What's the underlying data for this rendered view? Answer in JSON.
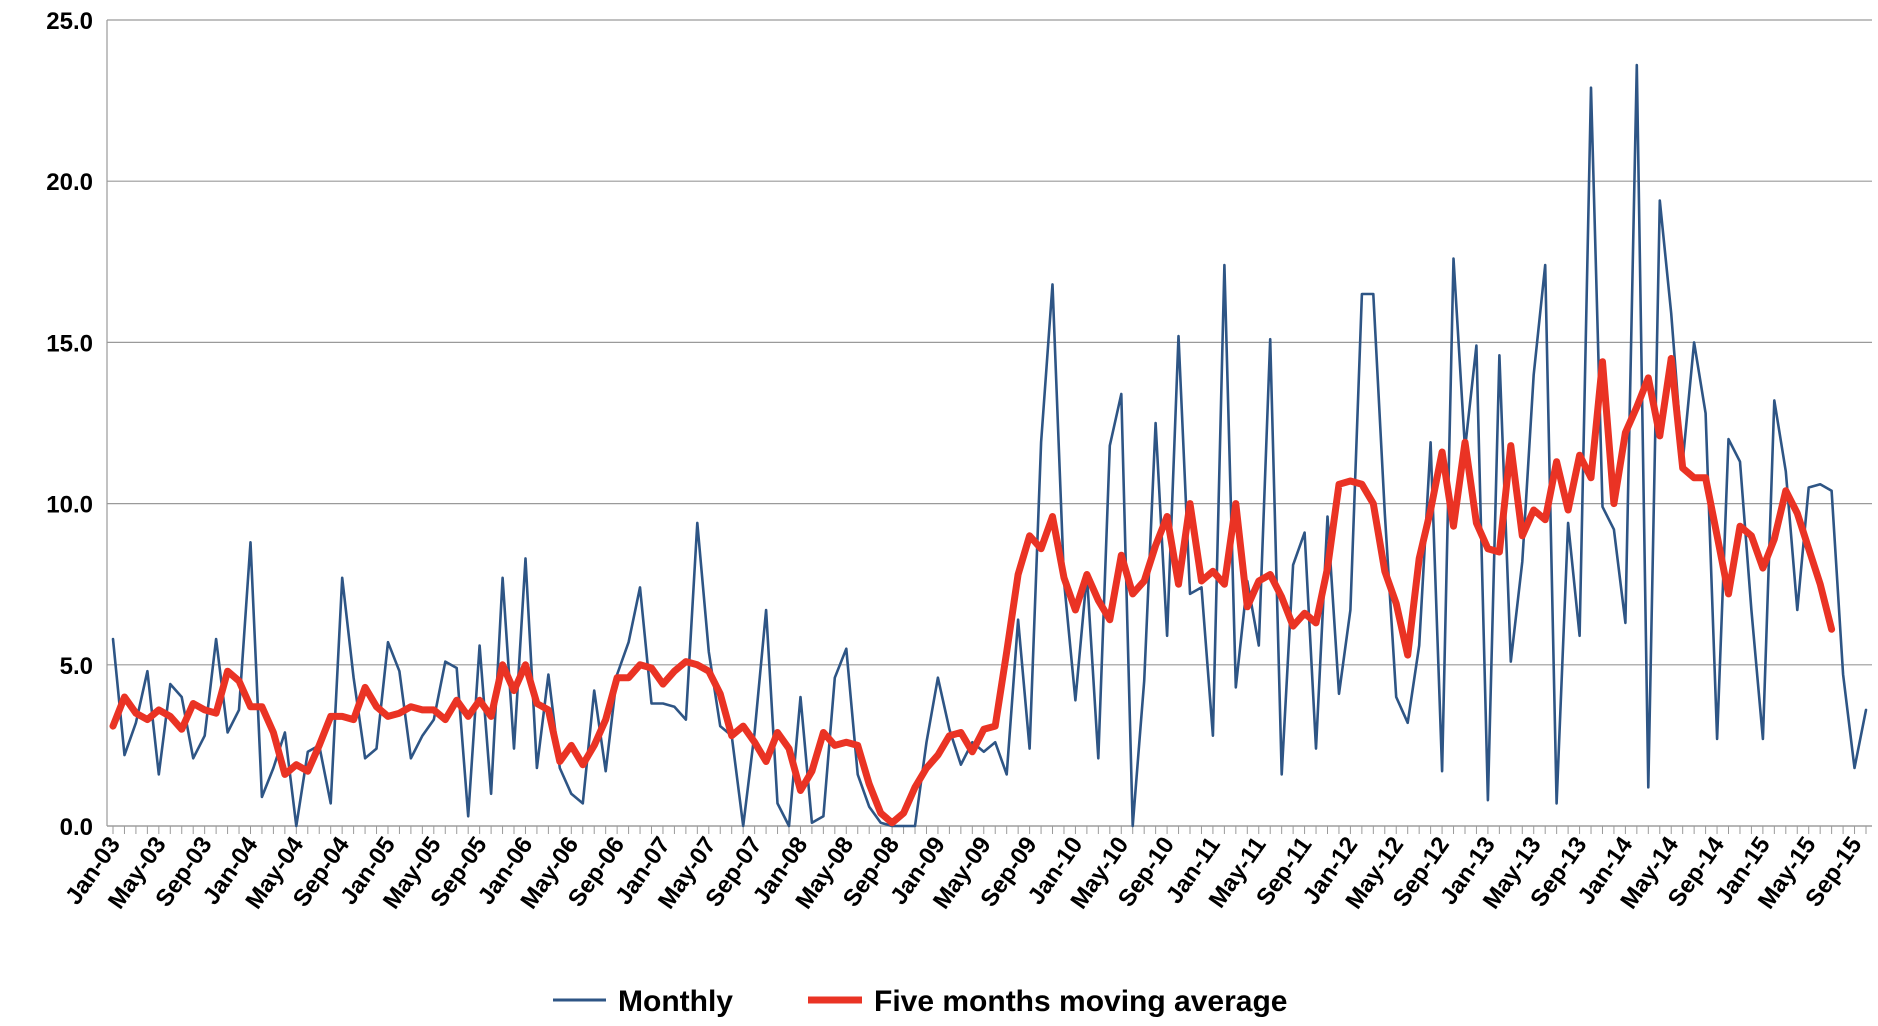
{
  "chart_data": {
    "type": "line",
    "title": "",
    "xlabel": "",
    "ylabel": "",
    "ylim": [
      0,
      25
    ],
    "yticks": [
      "0.0",
      "5.0",
      "10.0",
      "15.0",
      "20.0",
      "25.0"
    ],
    "grid": true,
    "legend_position": "bottom",
    "x_tick_labels": [
      "Jan-03",
      "May-03",
      "Sep-03",
      "Jan-04",
      "May-04",
      "Sep-04",
      "Jan-05",
      "May-05",
      "Sep-05",
      "Jan-06",
      "May-06",
      "Sep-06",
      "Jan-07",
      "May-07",
      "Sep-07",
      "Jan-08",
      "May-08",
      "Sep-08",
      "Jan-09",
      "May-09",
      "Sep-09",
      "Jan-10",
      "May-10",
      "Sep-10",
      "Jan-11",
      "May-11",
      "Sep-11",
      "Jan-12",
      "May-12",
      "Sep-12",
      "Jan-13",
      "May-13",
      "Sep-13",
      "Jan-14",
      "May-14",
      "Sep-14",
      "Jan-15",
      "May-15",
      "Sep-15"
    ],
    "x_start": "Jan-03",
    "x_end": "Sep-15",
    "series": [
      {
        "name": "Monthly",
        "color": "#2e5585",
        "values": [
          5.8,
          2.2,
          3.2,
          4.8,
          1.6,
          4.4,
          4.0,
          2.1,
          2.8,
          5.8,
          2.9,
          3.6,
          8.8,
          0.9,
          1.8,
          2.9,
          0.0,
          2.3,
          2.5,
          0.7,
          7.7,
          4.6,
          2.1,
          2.4,
          5.7,
          4.8,
          2.1,
          2.8,
          3.3,
          5.1,
          4.9,
          0.3,
          5.6,
          1.0,
          7.7,
          2.4,
          8.3,
          1.8,
          4.7,
          1.8,
          1.0,
          0.7,
          4.2,
          1.7,
          4.7,
          5.7,
          7.4,
          3.8,
          3.8,
          3.7,
          3.3,
          9.4,
          5.4,
          3.1,
          2.8,
          0.0,
          2.9,
          6.7,
          0.7,
          0.0,
          4.0,
          0.1,
          0.3,
          4.6,
          5.5,
          1.6,
          0.6,
          0.1,
          0.0,
          0.0,
          0.0,
          2.6,
          4.6,
          3.0,
          1.9,
          2.6,
          2.3,
          2.6,
          1.6,
          6.4,
          2.4,
          11.9,
          16.8,
          7.6,
          3.9,
          7.8,
          2.1,
          11.8,
          13.4,
          0.0,
          4.5,
          12.5,
          5.9,
          15.2,
          7.2,
          7.4,
          2.8,
          17.4,
          4.3,
          7.6,
          5.6,
          15.1,
          1.6,
          8.1,
          9.1,
          2.4,
          9.6,
          4.1,
          6.7,
          16.5,
          16.5,
          9.7,
          4.0,
          3.2,
          5.6,
          11.9,
          1.7,
          17.6,
          11.7,
          14.9,
          0.8,
          14.6,
          5.1,
          8.2,
          14.0,
          17.4,
          0.7,
          9.4,
          5.9,
          22.9,
          9.9,
          9.2,
          6.3,
          23.6,
          1.2,
          19.4,
          15.9,
          11.3,
          15.0,
          12.8,
          2.7,
          12.0,
          11.3,
          6.7,
          2.7,
          13.2,
          11.0,
          6.7,
          10.5,
          10.6,
          10.4,
          4.7,
          1.8,
          3.6
        ]
      },
      {
        "name": "Five months moving average",
        "color": "#ea3324",
        "values": [
          3.1,
          4.0,
          3.5,
          3.3,
          3.6,
          3.4,
          3.0,
          3.8,
          3.6,
          3.5,
          4.8,
          4.5,
          3.7,
          3.7,
          2.9,
          1.6,
          1.9,
          1.7,
          2.5,
          3.4,
          3.4,
          3.3,
          4.3,
          3.7,
          3.4,
          3.5,
          3.7,
          3.6,
          3.6,
          3.3,
          3.9,
          3.4,
          3.9,
          3.4,
          5.0,
          4.2,
          5.0,
          3.8,
          3.6,
          2.0,
          2.5,
          1.9,
          2.5,
          3.3,
          4.6,
          4.6,
          5.0,
          4.9,
          4.4,
          4.8,
          5.1,
          5.0,
          4.8,
          4.1,
          2.8,
          3.1,
          2.6,
          2.0,
          2.9,
          2.4,
          1.1,
          1.7,
          2.9,
          2.5,
          2.6,
          2.5,
          1.3,
          0.4,
          0.1,
          0.4,
          1.2,
          1.8,
          2.2,
          2.8,
          2.9,
          2.3,
          3.0,
          3.1,
          5.4,
          7.8,
          9.0,
          8.6,
          9.6,
          7.7,
          6.7,
          7.8,
          7.0,
          6.4,
          8.4,
          7.2,
          7.6,
          8.7,
          9.6,
          7.5,
          10.0,
          7.6,
          7.9,
          7.5,
          10.0,
          6.8,
          7.6,
          7.8,
          7.1,
          6.2,
          6.6,
          6.3,
          8.0,
          10.6,
          10.7,
          10.6,
          10.0,
          7.9,
          6.9,
          5.3,
          8.3,
          9.8,
          11.6,
          9.3,
          11.9,
          9.4,
          8.6,
          8.5,
          11.8,
          9.0,
          9.8,
          9.5,
          11.3,
          9.8,
          11.5,
          10.8,
          14.4,
          10.0,
          12.2,
          13.0,
          13.9,
          12.1,
          14.5,
          11.1,
          10.8,
          10.8,
          9.0,
          7.2,
          9.3,
          9.0,
          8.0,
          8.9,
          10.4,
          9.7,
          8.6,
          7.5,
          6.1
        ]
      }
    ]
  }
}
